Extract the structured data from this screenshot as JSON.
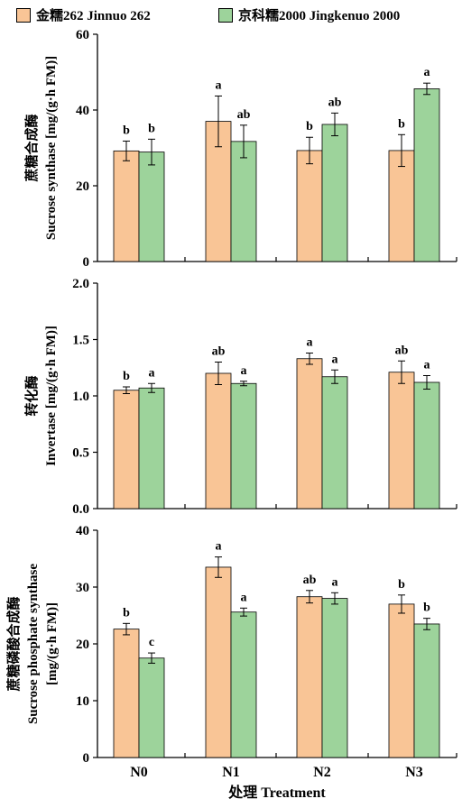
{
  "legend": [
    {
      "label": "金糯262 Jinnuo 262",
      "color": "#f9c596"
    },
    {
      "label": "京科糯2000 Jingkenuo 2000",
      "color": "#9dd39b"
    }
  ],
  "chart_data": [
    {
      "type": "bar",
      "ylabel_cn": "蔗糖合成酶",
      "ylabel_en": "Sucrose synthase [mg/(g·h FM)]",
      "ylim": [
        0,
        60
      ],
      "yticks": [
        "0",
        "20",
        "40",
        "60"
      ],
      "categories": [
        "N0",
        "N1",
        "N2",
        "N3"
      ],
      "series": [
        {
          "name": "金糯262 Jinnuo 262",
          "values": [
            29.2,
            37.0,
            29.3,
            29.3
          ],
          "errors": [
            2.6,
            6.7,
            3.5,
            4.2
          ],
          "letters": [
            "b",
            "a",
            "b",
            "b"
          ]
        },
        {
          "name": "京科糯2000 Jingkenuo 2000",
          "values": [
            28.9,
            31.7,
            36.2,
            45.6
          ],
          "errors": [
            3.4,
            4.3,
            3.0,
            1.5
          ],
          "letters": [
            "b",
            "ab",
            "ab",
            "a"
          ]
        }
      ]
    },
    {
      "type": "bar",
      "ylabel_cn": "转化酶",
      "ylabel_en": "Invertase [mg/(g·h FM)]",
      "ylim": [
        0,
        2.0
      ],
      "yticks": [
        "0.0",
        "0.5",
        "1.0",
        "1.5",
        "2.0"
      ],
      "categories": [
        "N0",
        "N1",
        "N2",
        "N3"
      ],
      "series": [
        {
          "name": "金糯262 Jinnuo 262",
          "values": [
            1.05,
            1.2,
            1.33,
            1.21
          ],
          "errors": [
            0.03,
            0.1,
            0.05,
            0.1
          ],
          "letters": [
            "b",
            "ab",
            "a",
            "ab"
          ]
        },
        {
          "name": "京科糯2000 Jingkenuo 2000",
          "values": [
            1.07,
            1.11,
            1.17,
            1.12
          ],
          "errors": [
            0.04,
            0.02,
            0.06,
            0.06
          ],
          "letters": [
            "a",
            "a",
            "a",
            "a"
          ]
        }
      ]
    },
    {
      "type": "bar",
      "ylabel_cn": "蔗糖磷酸合成酶",
      "ylabel_en": "Sucrose phosphate synthase",
      "ylabel_en2": "[mg/(g·h FM)]",
      "ylim": [
        0,
        40
      ],
      "yticks": [
        "0",
        "10",
        "20",
        "30",
        "40"
      ],
      "categories": [
        "N0",
        "N1",
        "N2",
        "N3"
      ],
      "xlabel": "处理 Treatment",
      "series": [
        {
          "name": "金糯262 Jinnuo 262",
          "values": [
            22.6,
            33.5,
            28.3,
            27.0
          ],
          "errors": [
            1.0,
            1.8,
            1.1,
            1.6
          ],
          "letters": [
            "b",
            "a",
            "ab",
            "b"
          ]
        },
        {
          "name": "京科糯2000 Jingkenuo 2000",
          "values": [
            17.5,
            25.6,
            28.0,
            23.5
          ],
          "errors": [
            0.9,
            0.7,
            1.0,
            1.0
          ],
          "letters": [
            "c",
            "a",
            "a",
            "b"
          ]
        }
      ]
    }
  ]
}
